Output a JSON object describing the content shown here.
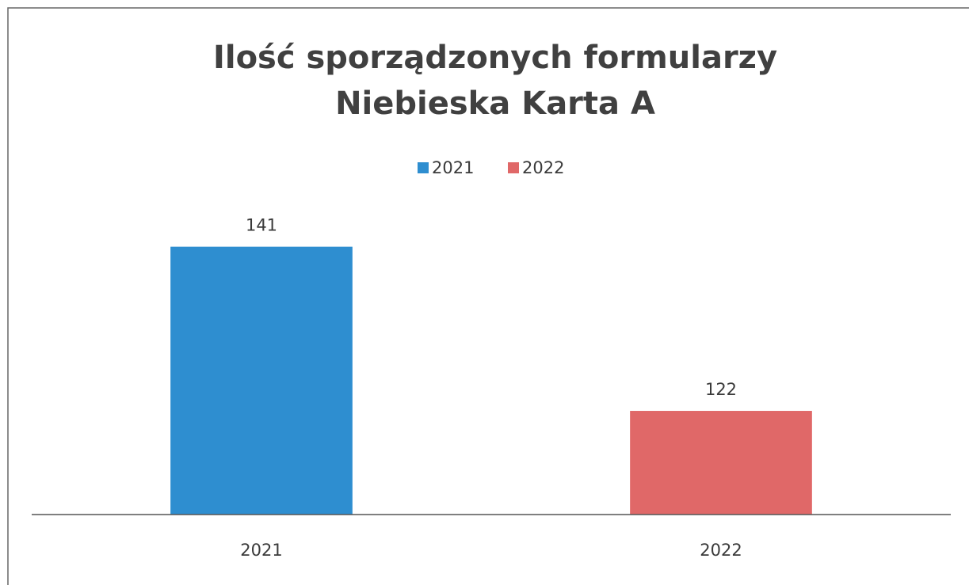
{
  "chart_data": {
    "type": "bar",
    "title": [
      "Ilość sporządzonych formularzy",
      "Niebieska Karta A"
    ],
    "categories": [
      "2021",
      "2022"
    ],
    "values": [
      141,
      122
    ],
    "colors": [
      "#2e8ed0",
      "#e06868"
    ],
    "ylim": [
      110,
      145
    ],
    "legend": "top"
  }
}
